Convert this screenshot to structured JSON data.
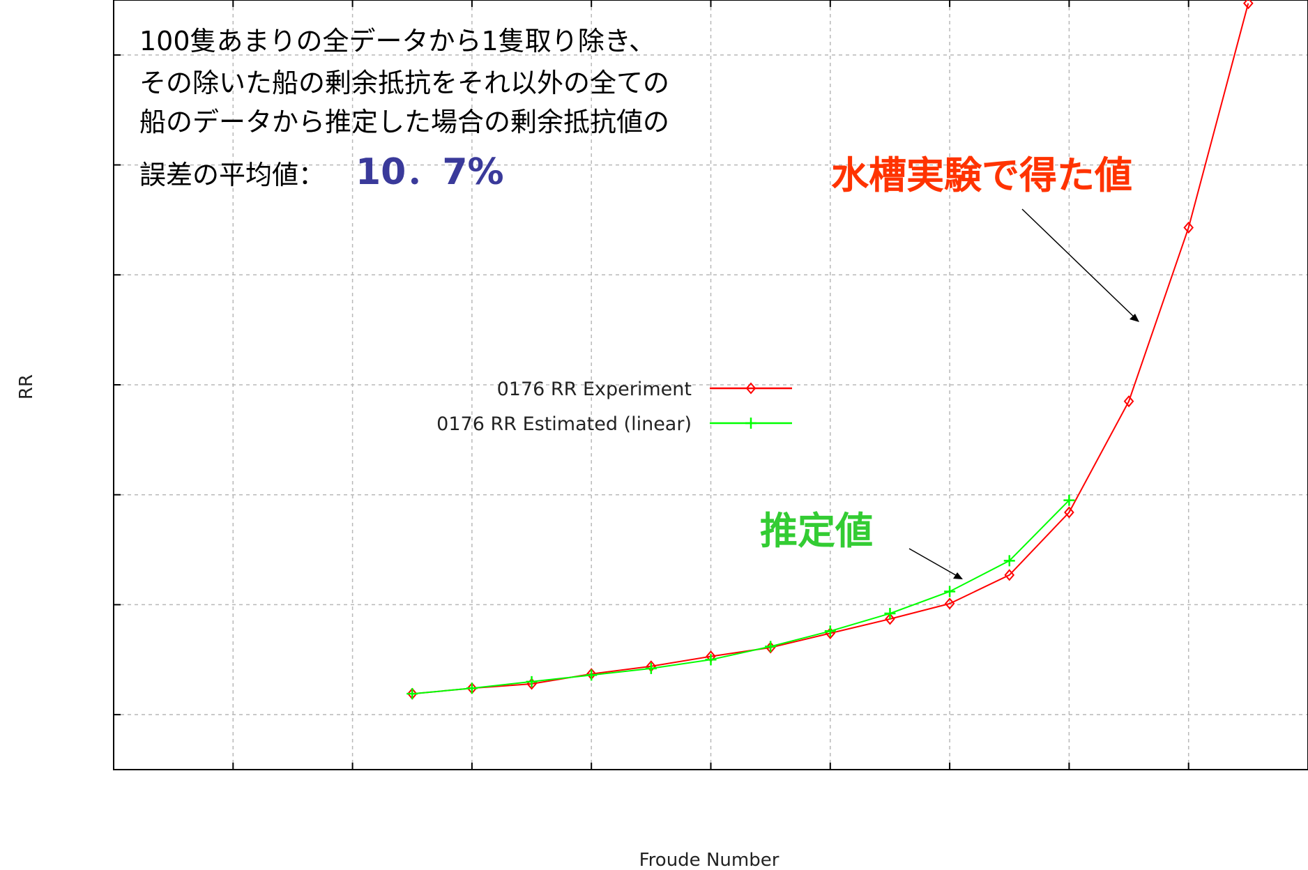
{
  "chart_data": {
    "type": "line",
    "title": "",
    "xlabel": "Froude Number",
    "ylabel": "RR",
    "grid": true,
    "legend_position": "center",
    "xlim": [
      0,
      10
    ],
    "ylim": [
      0,
      7
    ],
    "series": [
      {
        "name": "0176 RR Experiment",
        "color": "#ff0000",
        "marker": "diamond",
        "x": [
          2.5,
          3.0,
          3.5,
          4.0,
          4.5,
          5.0,
          5.5,
          6.0,
          6.5,
          7.0,
          7.5,
          8.0,
          8.5,
          9.0,
          9.5
        ],
        "y": [
          0.69,
          0.74,
          0.78,
          0.87,
          0.94,
          1.03,
          1.11,
          1.24,
          1.37,
          1.51,
          1.77,
          2.34,
          3.35,
          4.93,
          6.97
        ]
      },
      {
        "name": "0176 RR Estimated (linear)",
        "color": "#00ff00",
        "marker": "plus",
        "x": [
          2.5,
          3.0,
          3.5,
          4.0,
          4.5,
          5.0,
          5.5,
          6.0,
          6.5,
          7.0,
          7.5,
          8.0
        ],
        "y": [
          0.69,
          0.74,
          0.8,
          0.86,
          0.92,
          1.0,
          1.12,
          1.26,
          1.42,
          1.62,
          1.9,
          2.45
        ]
      }
    ]
  },
  "notes": {
    "error_text_lines": [
      "100隻あまりの全データから1隻取り除き、",
      "その除いた船の剰余抵抗をそれ以外の全ての",
      "船のデータから推定した場合の剰余抵抗値の"
    ],
    "error_label": "誤差の平均値：",
    "error_value": "10．7%"
  },
  "annotations": {
    "experiment": "水槽実験で得た値",
    "estimated": "推定値"
  },
  "colors": {
    "experiment": "#ff0000",
    "estimated": "#00ff00",
    "experiment_annotation": "#ff3300",
    "estimated_annotation": "#33cc33",
    "error_value": "#3a3a9a"
  }
}
